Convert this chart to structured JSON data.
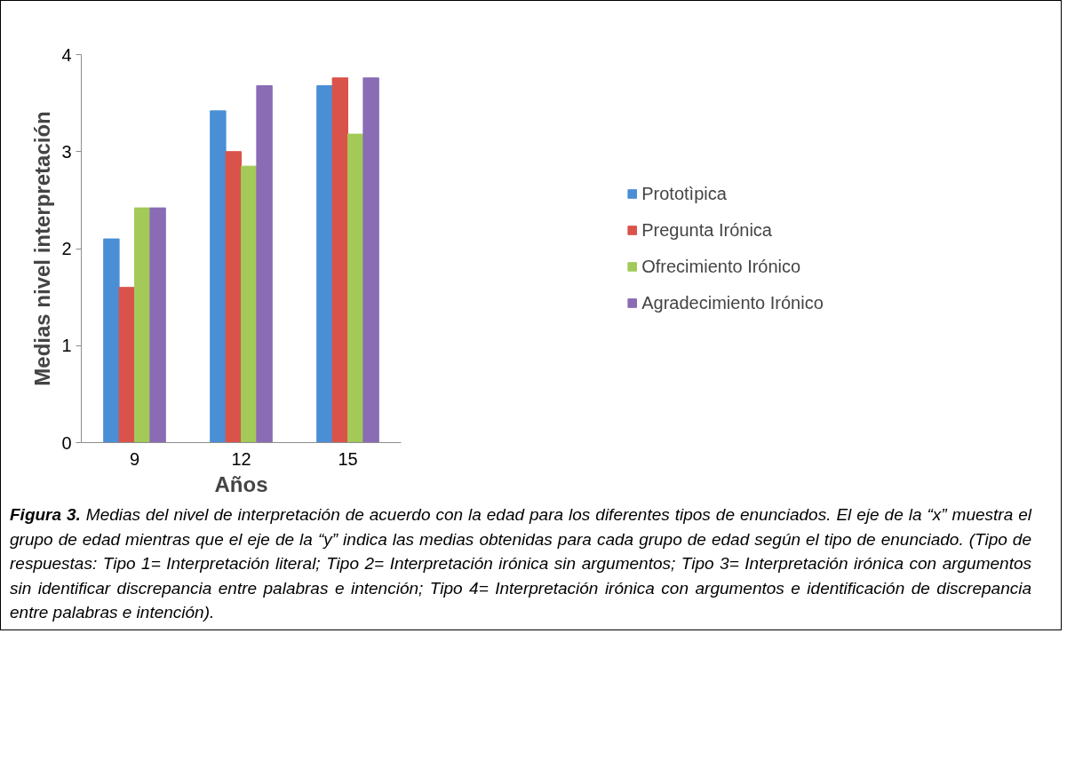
{
  "chart_data": {
    "type": "bar",
    "xlabel": "Años",
    "ylabel": "Medias nivel interpretación",
    "categories": [
      "9",
      "12",
      "15"
    ],
    "series": [
      {
        "name": "Prototìpica",
        "color": "#4a8fd6",
        "values": [
          2.1,
          3.42,
          3.68
        ]
      },
      {
        "name": "Pregunta Irónica",
        "color": "#d9534a",
        "values": [
          1.6,
          3.0,
          3.76
        ]
      },
      {
        "name": "Ofrecimiento Irónico",
        "color": "#a3c958",
        "values": [
          2.42,
          2.85,
          3.18
        ]
      },
      {
        "name": "Agradecimiento Irónico",
        "color": "#8a6cb5",
        "values": [
          2.42,
          3.68,
          3.76
        ]
      }
    ],
    "ylim": [
      0,
      4
    ],
    "yticks": [
      0,
      1,
      2,
      3,
      4
    ],
    "grid": false,
    "legend": "right",
    "annotations": [
      "Figura 3.",
      "Medias del nivel de interpretación de acuerdo con la edad para los diferentes tipos de enunciados. El eje de la “x” muestra el grupo de edad mientras que el eje de la “y” indica las medias obtenidas para cada grupo de edad según el tipo de enunciado. (Tipo de respuestas: Tipo 1= Interpretación literal; Tipo 2= Interpretación irónica sin argumentos; Tipo 3= Interpretación irónica con argumentos sin identificar discrepancia entre palabras e intención; Tipo 4= Interpretación irónica con argumentos e identificación de discrepancia entre palabras e intención)."
    ]
  }
}
